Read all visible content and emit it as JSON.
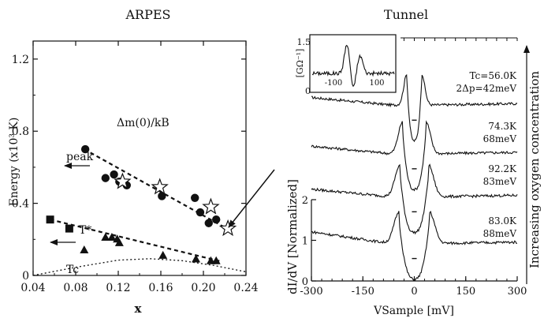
{
  "left_panel": {
    "title": "ARPES",
    "gap_label_main": "Δm(0)/kB",
    "peak_label": "peak",
    "tstar_label": "T*",
    "tc_label": "Tc"
  },
  "right_panel": {
    "title": "Tunnel",
    "side_label": "Increasing oxygen concentration",
    "inset_ylabel": "[GΩ⁻¹]",
    "curve_labels": [
      {
        "tc": "Tc=56.0K",
        "gap": "2Δp=42meV"
      },
      {
        "tc": "74.3K",
        "gap": "68meV"
      },
      {
        "tc": "92.2K",
        "gap": "83meV"
      },
      {
        "tc": "83.0K",
        "gap": "88meV"
      }
    ]
  },
  "chart_data": [
    {
      "type": "scatter",
      "title": "ARPES",
      "xlabel": "x",
      "ylabel": "Energy (x10³ K)",
      "xlim": [
        0.04,
        0.24
      ],
      "ylim": [
        0,
        1.3
      ],
      "x_ticks": [
        "0.04",
        "0.08",
        "0.12",
        "0.16",
        "0.20",
        "0.24"
      ],
      "y_ticks": [
        "0",
        "0.4",
        "0.8",
        "1.2"
      ],
      "series": [
        {
          "name": "peak",
          "marker": "circle",
          "x": [
            0.089,
            0.108,
            0.116,
            0.121,
            0.128,
            0.161,
            0.192,
            0.197,
            0.205,
            0.212
          ],
          "y": [
            0.7,
            0.54,
            0.56,
            0.52,
            0.5,
            0.44,
            0.43,
            0.35,
            0.29,
            0.31
          ]
        },
        {
          "name": "star",
          "marker": "star",
          "x": [
            0.124,
            0.159,
            0.207,
            0.223
          ],
          "y": [
            0.52,
            0.49,
            0.38,
            0.26
          ]
        },
        {
          "name": "T*",
          "marker": "square",
          "x": [
            0.056,
            0.074
          ],
          "y": [
            0.31,
            0.26
          ]
        },
        {
          "name": "triangles",
          "marker": "triangle",
          "x": [
            0.088,
            0.108,
            0.114,
            0.119,
            0.121,
            0.162,
            0.193,
            0.207,
            0.212
          ],
          "y": [
            0.14,
            0.21,
            0.21,
            0.2,
            0.18,
            0.11,
            0.09,
            0.08,
            0.08
          ]
        }
      ],
      "trend_lines": [
        {
          "name": "peak",
          "x": [
            0.088,
            0.225
          ],
          "y": [
            0.7,
            0.25
          ]
        },
        {
          "name": "T*",
          "x": [
            0.056,
            0.215
          ],
          "y": [
            0.31,
            0.08
          ]
        }
      ],
      "tc_dome": {
        "x": [
          0.04,
          0.08,
          0.12,
          0.15,
          0.18,
          0.21,
          0.24
        ],
        "y": [
          0.0,
          0.045,
          0.085,
          0.093,
          0.082,
          0.055,
          0.02
        ]
      }
    },
    {
      "type": "line",
      "title": "Tunnel",
      "xlabel": "VSample [mV]",
      "ylabel": "dI/dV [Normalized]",
      "xlim": [
        -300,
        300
      ],
      "x_ticks": [
        "-300",
        "-150",
        "0",
        "150",
        "300"
      ],
      "y_ticks": [
        "0",
        "1",
        "2"
      ],
      "series": [
        {
          "name": "Tc=56.0K, 2Δp=42meV",
          "gap_mV": 21,
          "offset": 3.7
        },
        {
          "name": "74.3K, 68meV",
          "gap_mV": 34,
          "offset": 2.4
        },
        {
          "name": "92.2K, 83meV",
          "gap_mV": 41.5,
          "offset": 1.25
        },
        {
          "name": "83.0K, 88meV",
          "gap_mV": 44,
          "offset": 0.0
        }
      ],
      "inset": {
        "ylabel": "[GΩ⁻¹]",
        "x_ticks": [
          "-100",
          "100"
        ],
        "y_ticks": [
          "0",
          "1.5"
        ]
      }
    }
  ]
}
